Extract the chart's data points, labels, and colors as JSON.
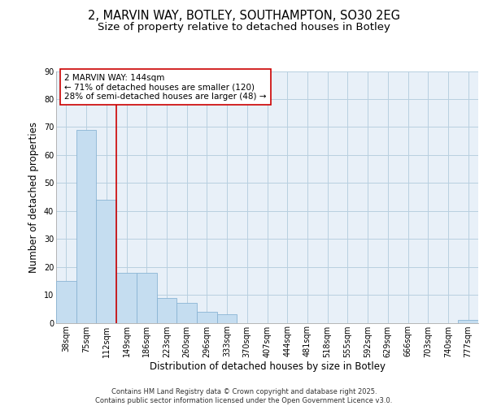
{
  "title_line1": "2, MARVIN WAY, BOTLEY, SOUTHAMPTON, SO30 2EG",
  "title_line2": "Size of property relative to detached houses in Botley",
  "xlabel": "Distribution of detached houses by size in Botley",
  "ylabel": "Number of detached properties",
  "bar_labels": [
    "38sqm",
    "75sqm",
    "112sqm",
    "149sqm",
    "186sqm",
    "223sqm",
    "260sqm",
    "296sqm",
    "333sqm",
    "370sqm",
    "407sqm",
    "444sqm",
    "481sqm",
    "518sqm",
    "555sqm",
    "592sqm",
    "629sqm",
    "666sqm",
    "703sqm",
    "740sqm",
    "777sqm"
  ],
  "bar_values": [
    15,
    69,
    44,
    18,
    18,
    9,
    7,
    4,
    3,
    0,
    0,
    0,
    0,
    0,
    0,
    0,
    0,
    0,
    0,
    0,
    1
  ],
  "bar_color": "#c5ddf0",
  "bar_edge_color": "#8ab4d4",
  "background_color": "#e8f0f8",
  "grid_color": "#b8cfe0",
  "red_line_color": "#cc0000",
  "annotation_text": "2 MARVIN WAY: 144sqm\n← 71% of detached houses are smaller (120)\n28% of semi-detached houses are larger (48) →",
  "annotation_box_color": "#ffffff",
  "annotation_box_edge": "#cc0000",
  "ylim": [
    0,
    90
  ],
  "yticks": [
    0,
    10,
    20,
    30,
    40,
    50,
    60,
    70,
    80,
    90
  ],
  "footer_text": "Contains HM Land Registry data © Crown copyright and database right 2025.\nContains public sector information licensed under the Open Government Licence v3.0.",
  "title_fontsize": 10.5,
  "subtitle_fontsize": 9.5,
  "axis_label_fontsize": 8.5,
  "tick_fontsize": 7,
  "annotation_fontsize": 7.5,
  "footer_fontsize": 6
}
